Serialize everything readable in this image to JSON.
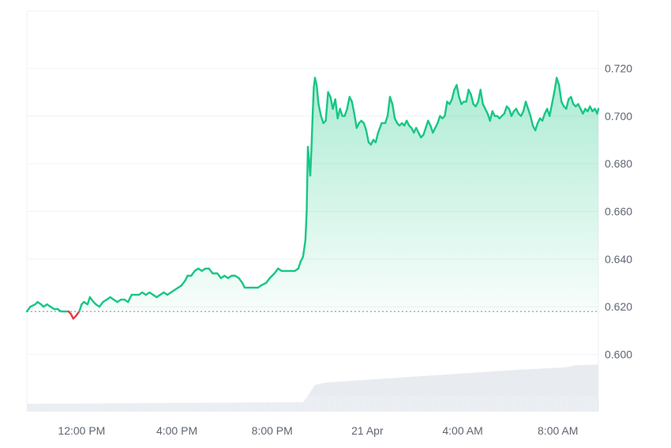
{
  "chart_data": {
    "type": "area",
    "title": "",
    "xlabel": "",
    "ylabel": "",
    "ylim": [
      0.576,
      0.744
    ],
    "yticks": [
      0.6,
      0.62,
      0.64,
      0.66,
      0.68,
      0.7,
      0.72
    ],
    "ytick_labels": [
      "0.600",
      "0.620",
      "0.640",
      "0.660",
      "0.680",
      "0.700",
      "0.720"
    ],
    "xtick_labels": [
      "12:00 PM",
      "4:00 PM",
      "8:00 PM",
      "21 Apr",
      "4:00 AM",
      "8:00 AM"
    ],
    "xticks_hours": [
      12,
      16,
      20,
      24,
      28,
      32
    ],
    "xlim_hours": [
      9.7,
      33.7
    ],
    "baseline": 0.618,
    "colors": {
      "up": "#16c784",
      "down": "#ea3943",
      "baseline": "#9aa0a6",
      "volume": "#e8ebf0",
      "grid": "#eff2f5"
    },
    "grid": true,
    "series": [
      {
        "values": [
          [
            9.7,
            0.618
          ],
          [
            9.85,
            0.62
          ],
          [
            10.05,
            0.621
          ],
          [
            10.15,
            0.622
          ],
          [
            10.3,
            0.621
          ],
          [
            10.4,
            0.62
          ],
          [
            10.55,
            0.621
          ],
          [
            10.7,
            0.62
          ],
          [
            10.85,
            0.619
          ],
          [
            11.0,
            0.619
          ],
          [
            11.15,
            0.618
          ],
          [
            11.3,
            0.618
          ],
          [
            11.45,
            0.618
          ],
          [
            11.55,
            0.617
          ],
          [
            11.65,
            0.615
          ],
          [
            11.75,
            0.616
          ],
          [
            11.9,
            0.618
          ],
          [
            12.0,
            0.621
          ],
          [
            12.1,
            0.622
          ],
          [
            12.25,
            0.621
          ],
          [
            12.35,
            0.624
          ],
          [
            12.5,
            0.622
          ],
          [
            12.6,
            0.621
          ],
          [
            12.75,
            0.62
          ],
          [
            12.9,
            0.622
          ],
          [
            13.05,
            0.623
          ],
          [
            13.2,
            0.624
          ],
          [
            13.35,
            0.623
          ],
          [
            13.5,
            0.622
          ],
          [
            13.65,
            0.623
          ],
          [
            13.8,
            0.623
          ],
          [
            13.95,
            0.622
          ],
          [
            14.1,
            0.625
          ],
          [
            14.25,
            0.625
          ],
          [
            14.4,
            0.625
          ],
          [
            14.55,
            0.626
          ],
          [
            14.7,
            0.625
          ],
          [
            14.85,
            0.626
          ],
          [
            15.0,
            0.625
          ],
          [
            15.15,
            0.624
          ],
          [
            15.3,
            0.625
          ],
          [
            15.45,
            0.626
          ],
          [
            15.6,
            0.625
          ],
          [
            15.75,
            0.626
          ],
          [
            15.9,
            0.627
          ],
          [
            16.05,
            0.628
          ],
          [
            16.2,
            0.629
          ],
          [
            16.35,
            0.631
          ],
          [
            16.45,
            0.633
          ],
          [
            16.6,
            0.633
          ],
          [
            16.75,
            0.635
          ],
          [
            16.9,
            0.636
          ],
          [
            17.05,
            0.635
          ],
          [
            17.2,
            0.636
          ],
          [
            17.35,
            0.636
          ],
          [
            17.5,
            0.634
          ],
          [
            17.7,
            0.634
          ],
          [
            17.85,
            0.632
          ],
          [
            18.0,
            0.633
          ],
          [
            18.15,
            0.632
          ],
          [
            18.3,
            0.633
          ],
          [
            18.45,
            0.633
          ],
          [
            18.6,
            0.632
          ],
          [
            18.75,
            0.63
          ],
          [
            18.85,
            0.628
          ],
          [
            19.0,
            0.628
          ],
          [
            19.2,
            0.628
          ],
          [
            19.4,
            0.628
          ],
          [
            19.55,
            0.629
          ],
          [
            19.75,
            0.63
          ],
          [
            19.9,
            0.632
          ],
          [
            20.1,
            0.634
          ],
          [
            20.25,
            0.636
          ],
          [
            20.4,
            0.635
          ],
          [
            20.55,
            0.635
          ],
          [
            20.75,
            0.635
          ],
          [
            20.95,
            0.635
          ],
          [
            21.1,
            0.636
          ],
          [
            21.2,
            0.639
          ],
          [
            21.3,
            0.641
          ],
          [
            21.4,
            0.648
          ],
          [
            21.45,
            0.66
          ],
          [
            21.5,
            0.687
          ],
          [
            21.55,
            0.681
          ],
          [
            21.6,
            0.675
          ],
          [
            21.65,
            0.686
          ],
          [
            21.7,
            0.7
          ],
          [
            21.75,
            0.712
          ],
          [
            21.8,
            0.716
          ],
          [
            21.87,
            0.713
          ],
          [
            21.95,
            0.705
          ],
          [
            22.05,
            0.7
          ],
          [
            22.15,
            0.697
          ],
          [
            22.25,
            0.698
          ],
          [
            22.35,
            0.71
          ],
          [
            22.45,
            0.708
          ],
          [
            22.55,
            0.703
          ],
          [
            22.65,
            0.707
          ],
          [
            22.75,
            0.699
          ],
          [
            22.85,
            0.703
          ],
          [
            22.95,
            0.7
          ],
          [
            23.05,
            0.7
          ],
          [
            23.15,
            0.703
          ],
          [
            23.25,
            0.708
          ],
          [
            23.35,
            0.706
          ],
          [
            23.45,
            0.701
          ],
          [
            23.55,
            0.695
          ],
          [
            23.65,
            0.697
          ],
          [
            23.75,
            0.698
          ],
          [
            23.85,
            0.697
          ],
          [
            23.95,
            0.694
          ],
          [
            24.05,
            0.689
          ],
          [
            24.15,
            0.688
          ],
          [
            24.25,
            0.69
          ],
          [
            24.35,
            0.689
          ],
          [
            24.45,
            0.693
          ],
          [
            24.6,
            0.697
          ],
          [
            24.75,
            0.697
          ],
          [
            24.85,
            0.7
          ],
          [
            24.95,
            0.708
          ],
          [
            25.05,
            0.705
          ],
          [
            25.15,
            0.699
          ],
          [
            25.25,
            0.697
          ],
          [
            25.35,
            0.696
          ],
          [
            25.45,
            0.697
          ],
          [
            25.55,
            0.696
          ],
          [
            25.65,
            0.698
          ],
          [
            25.75,
            0.696
          ],
          [
            25.85,
            0.695
          ],
          [
            25.95,
            0.693
          ],
          [
            26.05,
            0.695
          ],
          [
            26.15,
            0.693
          ],
          [
            26.25,
            0.691
          ],
          [
            26.35,
            0.692
          ],
          [
            26.45,
            0.695
          ],
          [
            26.55,
            0.698
          ],
          [
            26.65,
            0.696
          ],
          [
            26.75,
            0.693
          ],
          [
            26.85,
            0.695
          ],
          [
            26.95,
            0.697
          ],
          [
            27.05,
            0.7
          ],
          [
            27.15,
            0.699
          ],
          [
            27.25,
            0.7
          ],
          [
            27.35,
            0.706
          ],
          [
            27.45,
            0.705
          ],
          [
            27.55,
            0.707
          ],
          [
            27.65,
            0.711
          ],
          [
            27.75,
            0.713
          ],
          [
            27.85,
            0.708
          ],
          [
            27.95,
            0.705
          ],
          [
            28.05,
            0.706
          ],
          [
            28.15,
            0.706
          ],
          [
            28.25,
            0.711
          ],
          [
            28.35,
            0.709
          ],
          [
            28.45,
            0.705
          ],
          [
            28.55,
            0.704
          ],
          [
            28.65,
            0.706
          ],
          [
            28.75,
            0.711
          ],
          [
            28.85,
            0.705
          ],
          [
            28.95,
            0.703
          ],
          [
            29.05,
            0.701
          ],
          [
            29.15,
            0.698
          ],
          [
            29.25,
            0.702
          ],
          [
            29.35,
            0.7
          ],
          [
            29.45,
            0.7
          ],
          [
            29.55,
            0.699
          ],
          [
            29.65,
            0.7
          ],
          [
            29.75,
            0.701
          ],
          [
            29.85,
            0.704
          ],
          [
            29.95,
            0.703
          ],
          [
            30.05,
            0.7
          ],
          [
            30.15,
            0.702
          ],
          [
            30.25,
            0.703
          ],
          [
            30.35,
            0.701
          ],
          [
            30.45,
            0.7
          ],
          [
            30.55,
            0.702
          ],
          [
            30.65,
            0.706
          ],
          [
            30.75,
            0.703
          ],
          [
            30.85,
            0.7
          ],
          [
            30.95,
            0.696
          ],
          [
            31.05,
            0.694
          ],
          [
            31.15,
            0.697
          ],
          [
            31.25,
            0.699
          ],
          [
            31.35,
            0.698
          ],
          [
            31.45,
            0.701
          ],
          [
            31.55,
            0.703
          ],
          [
            31.65,
            0.7
          ],
          [
            31.75,
            0.705
          ],
          [
            31.85,
            0.71
          ],
          [
            31.95,
            0.716
          ],
          [
            32.05,
            0.713
          ],
          [
            32.15,
            0.706
          ],
          [
            32.25,
            0.704
          ],
          [
            32.35,
            0.703
          ],
          [
            32.45,
            0.707
          ],
          [
            32.55,
            0.708
          ],
          [
            32.65,
            0.705
          ],
          [
            32.75,
            0.704
          ],
          [
            32.85,
            0.705
          ],
          [
            32.95,
            0.703
          ],
          [
            33.05,
            0.701
          ],
          [
            33.15,
            0.703
          ],
          [
            33.25,
            0.702
          ],
          [
            33.35,
            0.704
          ],
          [
            33.45,
            0.702
          ],
          [
            33.55,
            0.703
          ],
          [
            33.65,
            0.701
          ],
          [
            33.7,
            0.703
          ]
        ]
      }
    ],
    "volume": [
      [
        9.7,
        1
      ],
      [
        21.3,
        1.2
      ],
      [
        21.5,
        2.0
      ],
      [
        21.8,
        3.4
      ],
      [
        22.3,
        3.7
      ],
      [
        23.3,
        3.9
      ],
      [
        24.3,
        4.1
      ],
      [
        25.3,
        4.3
      ],
      [
        26.3,
        4.5
      ],
      [
        27.3,
        4.7
      ],
      [
        28.3,
        4.9
      ],
      [
        29.3,
        5.1
      ],
      [
        30.3,
        5.3
      ],
      [
        31.3,
        5.45
      ],
      [
        32.3,
        5.6
      ],
      [
        32.8,
        5.9
      ],
      [
        33.7,
        5.95
      ]
    ]
  }
}
